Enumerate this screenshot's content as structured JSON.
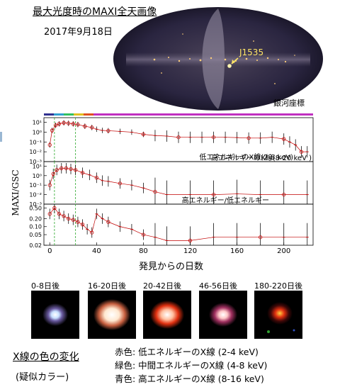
{
  "allsky": {
    "title": "最大光度時のMAXI全天画像",
    "date": "2017年9月18日",
    "source_label": "J1535",
    "coordinate_label": "銀河座標",
    "colors": {
      "sky": "#2a2540",
      "label": "#ffe566"
    }
  },
  "chart_data": {
    "type": "scatter",
    "ylabel": "MAXI/GSC",
    "xlabel": "発見からの日数",
    "xlim": [
      -5,
      225
    ],
    "x_ticks": [
      0,
      40,
      80,
      120,
      160,
      200
    ],
    "dashed_lines_x": [
      4,
      22
    ],
    "panels": [
      {
        "label": "低エネルギーのX線(2-8 keV)",
        "scale": "log",
        "ylim": [
          0.001,
          30
        ],
        "y_ticks": [
          "10⁻³",
          "10⁻²",
          "10⁻¹",
          "10⁰",
          "10¹"
        ],
        "points": [
          [
            0,
            0.05
          ],
          [
            2,
            1.5
          ],
          [
            5,
            5
          ],
          [
            8,
            7
          ],
          [
            12,
            9
          ],
          [
            16,
            8
          ],
          [
            20,
            7
          ],
          [
            24,
            6
          ],
          [
            30,
            4
          ],
          [
            36,
            3
          ],
          [
            40,
            2
          ],
          [
            45,
            1.5
          ],
          [
            50,
            1.4
          ],
          [
            60,
            1.2
          ],
          [
            70,
            1.0
          ],
          [
            80,
            0.6
          ],
          [
            90,
            0.45
          ],
          [
            100,
            0.4
          ],
          [
            110,
            0.3
          ],
          [
            120,
            0.3
          ],
          [
            130,
            0.3
          ],
          [
            140,
            0.3
          ],
          [
            150,
            0.3
          ],
          [
            160,
            0.28
          ],
          [
            170,
            0.25
          ],
          [
            180,
            0.25
          ],
          [
            190,
            0.3
          ],
          [
            200,
            0.2
          ],
          [
            205,
            0.1
          ],
          [
            210,
            0.05
          ],
          [
            215,
            0.01
          ],
          [
            220,
            0.01
          ]
        ]
      },
      {
        "label": "高エネルギーのX線(8-20 keV )",
        "scale": "log",
        "ylim": [
          0.001,
          30
        ],
        "y_ticks": [
          "10⁻³",
          "10⁻²",
          "10⁻¹",
          "10⁰",
          "10¹"
        ],
        "points": [
          [
            0,
            0.1
          ],
          [
            3,
            1.5
          ],
          [
            6,
            4
          ],
          [
            10,
            6
          ],
          [
            14,
            6
          ],
          [
            18,
            5
          ],
          [
            22,
            4
          ],
          [
            28,
            2
          ],
          [
            34,
            1.2
          ],
          [
            40,
            0.6
          ],
          [
            45,
            0.3
          ],
          [
            50,
            0.25
          ],
          [
            60,
            0.15
          ],
          [
            70,
            0.1
          ],
          [
            80,
            0.05
          ],
          [
            90,
            0.02
          ],
          [
            100,
            0.01
          ],
          [
            120,
            0.01
          ],
          [
            140,
            0.01
          ],
          [
            160,
            0.012
          ],
          [
            180,
            0.01
          ],
          [
            200,
            0.01
          ],
          [
            220,
            0.01
          ]
        ]
      },
      {
        "label": "高エネルギー/低エネルギー",
        "scale": "log",
        "ylim": [
          0.02,
          0.7
        ],
        "y_ticks": [
          "0.02",
          "0.05",
          "0.10",
          "0.20",
          "0.50"
        ],
        "points": [
          [
            0,
            0.3
          ],
          [
            4,
            0.5
          ],
          [
            8,
            0.3
          ],
          [
            12,
            0.25
          ],
          [
            16,
            0.2
          ],
          [
            20,
            0.18
          ],
          [
            24,
            0.15
          ],
          [
            28,
            0.12
          ],
          [
            32,
            0.08
          ],
          [
            36,
            0.06
          ],
          [
            40,
            0.3
          ],
          [
            45,
            0.2
          ],
          [
            50,
            0.15
          ],
          [
            60,
            0.1
          ],
          [
            70,
            0.08
          ],
          [
            80,
            0.05
          ],
          [
            90,
            0.04
          ],
          [
            100,
            0.03
          ],
          [
            120,
            0.03
          ],
          [
            140,
            0.04
          ],
          [
            160,
            0.04
          ],
          [
            180,
            0.04
          ],
          [
            200,
            0.04
          ],
          [
            220,
            0.04
          ]
        ]
      }
    ]
  },
  "color_images": [
    {
      "label": "0-8日後"
    },
    {
      "label": "16-20日後"
    },
    {
      "label": "20-42日後"
    },
    {
      "label": "46-56日後"
    },
    {
      "label": "180-220日後"
    }
  ],
  "color_legend": {
    "heading": "X線の色の変化",
    "subheading": "(疑似カラー)",
    "lines": [
      "赤色: 低エネルギーのX線 (2-4 keV)",
      "緑色: 中間エネルギーのX線 (4-8 keV)",
      "青色: 高エネルギーのX線 (8-16 keV)"
    ]
  }
}
